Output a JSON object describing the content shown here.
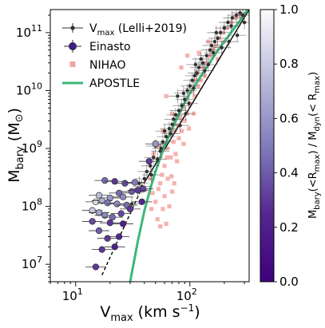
{
  "chart_data": {
    "type": "scatter",
    "x_scale": "log",
    "y_scale": "log",
    "xlim": [
      6,
      330
    ],
    "ylim": [
      5000000,
      250000000000
    ],
    "xlabel": "V",
    "xlabel_sub": "max",
    "xlabel_unit": " (km s",
    "xlabel_unit_sup": "−1",
    "xlabel_close": ")",
    "ylabel": "M",
    "ylabel_sub": "bary",
    "ylabel_unit": " (M",
    "ylabel_unit_sub": "⊙",
    "ylabel_close": ")",
    "x_ticks": [
      {
        "value": 10,
        "base": "10",
        "exp": "1"
      },
      {
        "value": 100,
        "base": "10",
        "exp": "2"
      }
    ],
    "y_ticks": [
      {
        "value": 10000000,
        "base": "10",
        "exp": "7"
      },
      {
        "value": 100000000,
        "base": "10",
        "exp": "8"
      },
      {
        "value": 1000000000,
        "base": "10",
        "exp": "9"
      },
      {
        "value": 10000000000,
        "base": "10",
        "exp": "10"
      },
      {
        "value": 100000000000,
        "base": "10",
        "exp": "11"
      }
    ],
    "legend": {
      "placement": "top-left",
      "entries": [
        {
          "label": "V",
          "sub": "max",
          "suffix": " (Lelli+2019)",
          "marker": "errorbar-point",
          "color": "#303030"
        },
        {
          "label": "Einasto",
          "marker": "errorbar-circle",
          "color": "#3c1e85"
        },
        {
          "label": "NIHAO",
          "marker": "square",
          "color": "#f4a5a0"
        },
        {
          "label": "APOSTLE",
          "marker": "line",
          "color": "#3cb878"
        }
      ]
    },
    "colorbar": {
      "label": "M",
      "label_sub": "bary",
      "label_mid": "(<R",
      "label_mid_sub": "max",
      "label_mid2": ") / M",
      "label_sub2": "dyn",
      "label_end": "(< R",
      "label_end_sub": "max",
      "label_end_close": ")",
      "range": [
        0.0,
        1.0
      ],
      "ticks": [
        "0.0",
        "0.2",
        "0.4",
        "0.6",
        "0.8",
        "1.0"
      ],
      "colormap": "Purples_r",
      "color_low": "#3f007d",
      "color_high": "#fcfbfd"
    },
    "series": [
      {
        "name": "Einasto",
        "kind": "einasto",
        "points": [
          [
            18,
            280000000,
            0.45
          ],
          [
            22,
            270000000,
            0.3
          ],
          [
            27,
            250000000,
            0.35
          ],
          [
            33,
            260000000,
            0.5
          ],
          [
            39,
            200000000,
            0.35
          ],
          [
            24,
            170000000,
            0.45
          ],
          [
            31,
            180000000,
            0.4
          ],
          [
            16,
            155000000,
            0.75
          ],
          [
            20,
            140000000,
            0.6
          ],
          [
            26,
            145000000,
            0.55
          ],
          [
            35,
            190000000,
            0.3
          ],
          [
            15,
            120000000,
            0.9
          ],
          [
            17,
            125000000,
            0.7
          ],
          [
            19,
            115000000,
            0.5
          ],
          [
            23,
            110000000,
            0.55
          ],
          [
            28,
            105000000,
            0.45
          ],
          [
            38,
            120000000,
            0.25
          ],
          [
            14,
            85000000,
            0.8
          ],
          [
            16,
            78000000,
            0.65
          ],
          [
            18,
            70000000,
            0.55
          ],
          [
            21,
            65000000,
            0.45
          ],
          [
            25,
            75000000,
            0.35
          ],
          [
            30,
            90000000,
            0.3
          ],
          [
            14,
            55000000,
            0.35
          ],
          [
            20,
            52000000,
            0.3
          ],
          [
            26,
            50000000,
            0.2
          ],
          [
            16,
            38000000,
            0.4
          ],
          [
            19,
            28000000,
            0.3
          ],
          [
            24,
            30000000,
            0.25
          ],
          [
            17,
            18000000,
            0.3
          ],
          [
            22,
            20000000,
            0.2
          ],
          [
            15,
            9000000,
            0.3
          ],
          [
            44,
            600000000,
            0.3
          ],
          [
            50,
            1200000000,
            0.6
          ]
        ],
        "x_err_dex": 0.09,
        "y_err_dex": 0.05
      },
      {
        "name": "NIHAO",
        "kind": "nihao",
        "color": "#f4a5a0",
        "points": [
          [
            46,
            90000000
          ],
          [
            47,
            170000000
          ],
          [
            50,
            120000000
          ],
          [
            52,
            60000000
          ],
          [
            55,
            45000000
          ],
          [
            53,
            200000000
          ],
          [
            58,
            90000000
          ],
          [
            60,
            150000000
          ],
          [
            62,
            50000000
          ],
          [
            66,
            100000000
          ],
          [
            70,
            180000000
          ],
          [
            55,
            250000000
          ],
          [
            57,
            350000000
          ],
          [
            64,
            300000000
          ],
          [
            73,
            250000000
          ],
          [
            60,
            500000000
          ],
          [
            68,
            700000000
          ],
          [
            75,
            800000000
          ],
          [
            63,
            1000000000
          ],
          [
            72,
            1300000000
          ],
          [
            80,
            1500000000
          ],
          [
            85,
            2000000000
          ],
          [
            78,
            2500000000
          ],
          [
            90,
            3000000000
          ],
          [
            95,
            4000000000
          ],
          [
            88,
            5000000000
          ],
          [
            100,
            6000000000
          ],
          [
            110,
            8000000000
          ],
          [
            105,
            10000000000
          ],
          [
            118,
            12000000000
          ],
          [
            125,
            15000000000
          ],
          [
            115,
            20000000000
          ],
          [
            130,
            25000000000
          ],
          [
            140,
            30000000000
          ],
          [
            150,
            40000000000
          ],
          [
            160,
            50000000000
          ],
          [
            170,
            60000000000
          ],
          [
            145,
            70000000000
          ],
          [
            180,
            80000000000
          ],
          [
            195,
            100000000000
          ],
          [
            210,
            120000000000
          ],
          [
            230,
            150000000000
          ],
          [
            250,
            180000000000
          ],
          [
            270,
            200000000000
          ],
          [
            200,
            70000000000
          ],
          [
            175,
            35000000000
          ],
          [
            135,
            18000000000
          ],
          [
            112,
            15000000000
          ],
          [
            92,
            7000000000
          ],
          [
            82,
            3500000000
          ],
          [
            74,
            2000000000
          ],
          [
            67,
            1800000000
          ],
          [
            63,
            700000000
          ],
          [
            77,
            600000000
          ],
          [
            98,
            2200000000
          ],
          [
            88,
            1200000000
          ],
          [
            108,
            4000000000
          ],
          [
            45,
            300000000
          ],
          [
            58,
            2000000000
          ],
          [
            70,
            4000000000
          ],
          [
            62,
            8000000000
          ],
          [
            84,
            25000000000
          ],
          [
            95,
            40000000000
          ],
          [
            120,
            45000000000
          ],
          [
            69,
            330000000
          ],
          [
            48,
            800000000
          ],
          [
            53,
            1100000000
          ]
        ]
      },
      {
        "name": "Vmax (Lelli+2019)",
        "kind": "lelli",
        "color": "#303030",
        "points": [
          [
            31,
            110000000
          ],
          [
            35,
            180000000
          ],
          [
            40,
            300000000
          ],
          [
            42,
            400000000
          ],
          [
            38,
            220000000
          ],
          [
            45,
            500000000
          ],
          [
            48,
            700000000
          ],
          [
            52,
            650000000
          ],
          [
            55,
            900000000
          ],
          [
            50,
            1100000000
          ],
          [
            58,
            1300000000
          ],
          [
            62,
            1600000000
          ],
          [
            60,
            2000000000
          ],
          [
            66,
            2200000000
          ],
          [
            70,
            2600000000
          ],
          [
            72,
            3200000000
          ],
          [
            68,
            1800000000
          ],
          [
            75,
            3800000000
          ],
          [
            80,
            4500000000
          ],
          [
            85,
            5500000000
          ],
          [
            90,
            7000000000
          ],
          [
            88,
            9000000000
          ],
          [
            95,
            10000000000
          ],
          [
            100,
            12000000000
          ],
          [
            105,
            15000000000
          ],
          [
            110,
            18000000000
          ],
          [
            115,
            20000000000
          ],
          [
            120,
            25000000000
          ],
          [
            130,
            30000000000
          ],
          [
            140,
            40000000000
          ],
          [
            150,
            50000000000
          ],
          [
            155,
            60000000000
          ],
          [
            165,
            70000000000
          ],
          [
            175,
            80000000000
          ],
          [
            185,
            100000000000
          ],
          [
            200,
            120000000000
          ],
          [
            215,
            150000000000
          ],
          [
            235,
            180000000000
          ],
          [
            255,
            200000000000
          ],
          [
            275,
            220000000000
          ],
          [
            290,
            200000000000
          ],
          [
            300,
            150000000000
          ],
          [
            260,
            90000000000
          ],
          [
            220,
            70000000000
          ],
          [
            190,
            55000000000
          ],
          [
            160,
            45000000000
          ],
          [
            135,
            22000000000
          ],
          [
            125,
            35000000000
          ],
          [
            112,
            28000000000
          ],
          [
            98,
            6000000000
          ],
          [
            82,
            2500000000
          ],
          [
            78,
            8000000000
          ],
          [
            92,
            4000000000
          ],
          [
            56,
            1000000000
          ],
          [
            46,
            350000000
          ],
          [
            36,
            250000000
          ],
          [
            108,
            11000000000
          ],
          [
            145,
            28000000000
          ],
          [
            170,
            100000000000
          ],
          [
            230,
            130000000000
          ]
        ],
        "x_err_dex": 0.08,
        "y_err_dex": 0.12
      },
      {
        "name": "Black fit",
        "kind": "line",
        "color": "#000000",
        "style": "solid",
        "points": [
          [
            40,
            260000000
          ],
          [
            330,
            250000000000
          ]
        ]
      },
      {
        "name": "Black extrapolation",
        "kind": "line",
        "color": "#000000",
        "style": "dashed",
        "points": [
          [
            17,
            6500000
          ],
          [
            40,
            260000000
          ]
        ]
      },
      {
        "name": "APOSTLE",
        "kind": "line",
        "color": "#3cb878",
        "style": "solid",
        "points": [
          [
            30,
            5000000
          ],
          [
            35,
            25000000
          ],
          [
            40,
            85000000
          ],
          [
            45,
            200000000
          ],
          [
            50,
            400000000
          ],
          [
            60,
            1100000000
          ],
          [
            70,
            2200000000
          ],
          [
            85,
            5000000000
          ],
          [
            100,
            9000000000
          ],
          [
            130,
            20000000000
          ],
          [
            170,
            45000000000
          ],
          [
            220,
            90000000000
          ],
          [
            280,
            170000000000
          ],
          [
            320,
            250000000000
          ]
        ]
      }
    ]
  }
}
